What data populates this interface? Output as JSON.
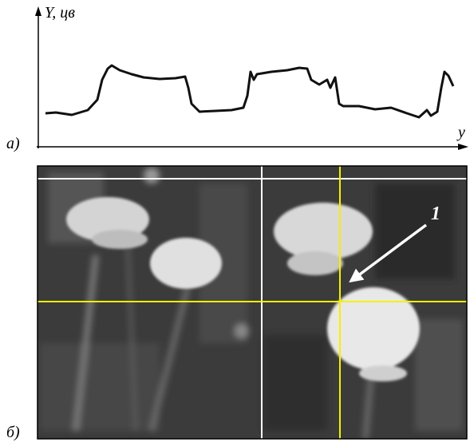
{
  "figure": {
    "panel_a": {
      "label": "а)",
      "y_axis_label": "Y, цв",
      "x_axis_label": "y"
    },
    "panel_b": {
      "label": "б)",
      "marker": "1"
    }
  }
}
